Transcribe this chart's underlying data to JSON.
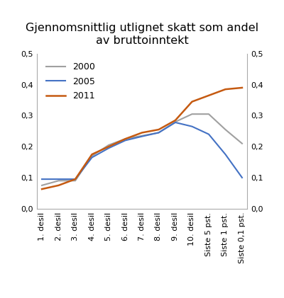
{
  "title": "Gjennomsnittlig utlignet skatt som andel\nav bruttoinntekt",
  "categories": [
    "1. desil",
    "2. desil",
    "3. desil",
    "4. desil",
    "5. desil",
    "6. desil",
    "7. desil",
    "8. desil",
    "9. desil",
    "10. desil",
    "Siste 5 pst.",
    "Siste 1 pst.",
    "Siste 0,1 pst."
  ],
  "series": {
    "2000": [
      0.075,
      0.09,
      0.09,
      0.17,
      0.205,
      0.225,
      0.235,
      0.245,
      0.28,
      0.305,
      0.305,
      0.255,
      0.21
    ],
    "2005": [
      0.095,
      0.095,
      0.095,
      0.165,
      0.195,
      0.22,
      0.233,
      0.245,
      0.278,
      0.265,
      0.24,
      0.175,
      0.1
    ],
    "2011": [
      0.063,
      0.075,
      0.095,
      0.175,
      0.2,
      0.225,
      0.245,
      0.255,
      0.285,
      0.345,
      0.365,
      0.385,
      0.39
    ]
  },
  "colors": {
    "2000": "#a0a0a0",
    "2005": "#4472c4",
    "2011": "#c55a11"
  },
  "ylim": [
    0.0,
    0.5
  ],
  "yticks": [
    0.0,
    0.1,
    0.2,
    0.3,
    0.4,
    0.5
  ],
  "ytick_labels": [
    "0,0",
    "0,1",
    "0,2",
    "0,3",
    "0,4",
    "0,5"
  ],
  "background_color": "#ffffff",
  "title_fontsize": 11.5,
  "legend_fontsize": 9,
  "tick_fontsize": 8
}
